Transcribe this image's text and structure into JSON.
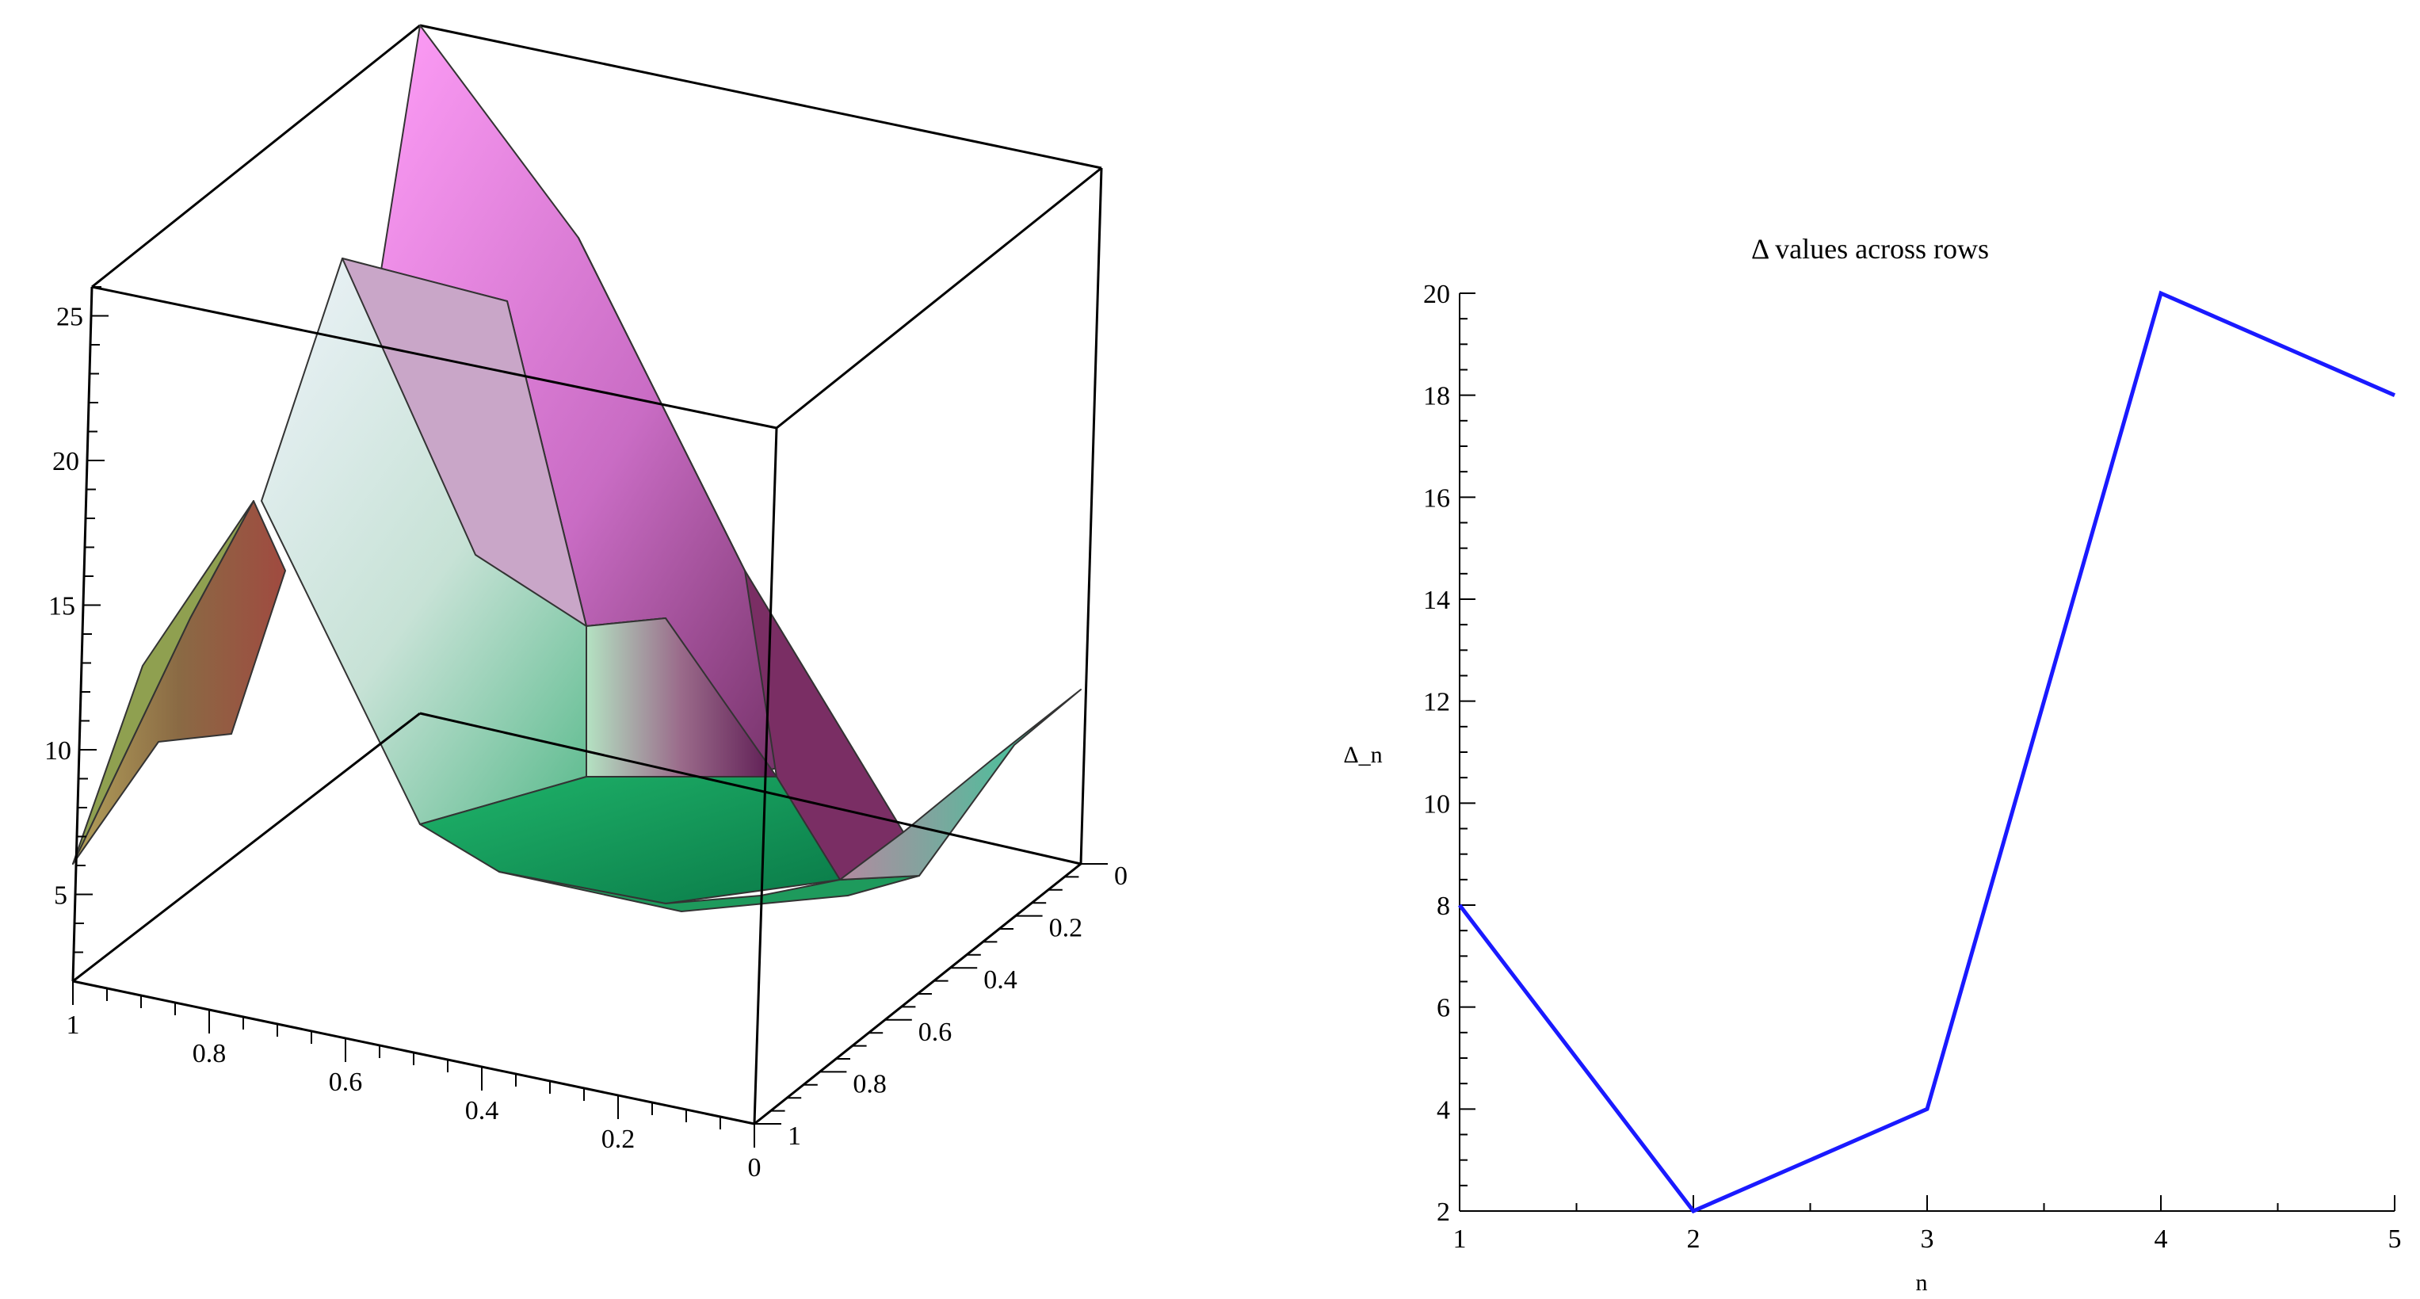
{
  "chart_data": [
    {
      "type": "surface3d",
      "title": "",
      "xlabel": "",
      "ylabel": "",
      "zlabel": "",
      "xlim": [
        0,
        1
      ],
      "ylim": [
        0,
        1
      ],
      "zlim": [
        2,
        26
      ],
      "z_ticks": [
        "5",
        "10",
        "15",
        "20",
        "25"
      ],
      "front_axis_ticks": [
        "1",
        "0.8",
        "0.6",
        "0.4",
        "0.2",
        "0"
      ],
      "right_axis_ticks": [
        "0",
        "0.2",
        "0.4",
        "0.6",
        "0.8",
        "1"
      ],
      "x": [
        0,
        0.25,
        0.5,
        0.75,
        1
      ],
      "y": [
        0,
        0.25,
        0.5,
        0.75,
        1
      ],
      "z": [
        [
          6,
          10,
          10,
          9,
          6
        ],
        [
          10,
          15,
          20,
          12,
          10
        ],
        [
          20,
          25,
          22,
          14,
          8
        ],
        [
          26,
          18,
          16,
          11,
          7
        ],
        [
          10,
          7,
          5,
          6,
          9
        ]
      ],
      "colors": [
        "#f28cf0",
        "#2cc07a",
        "#f3f4f8",
        "#8b5a3a",
        "#5a1a4a"
      ]
    },
    {
      "type": "line",
      "title": "Δ values across rows",
      "xlabel": "n",
      "ylabel": "Δ_n",
      "x": [
        1,
        2,
        3,
        4,
        5
      ],
      "series": [
        {
          "values": [
            8,
            2,
            4,
            20,
            18
          ],
          "color": "#1a1aff"
        }
      ],
      "xlim": [
        1,
        5
      ],
      "ylim": [
        2,
        20
      ],
      "x_ticks": [
        1,
        2,
        3,
        4,
        5
      ],
      "y_ticks": [
        2,
        4,
        6,
        8,
        10,
        12,
        14,
        16,
        18,
        20
      ],
      "grid": false,
      "legend": "none"
    }
  ]
}
